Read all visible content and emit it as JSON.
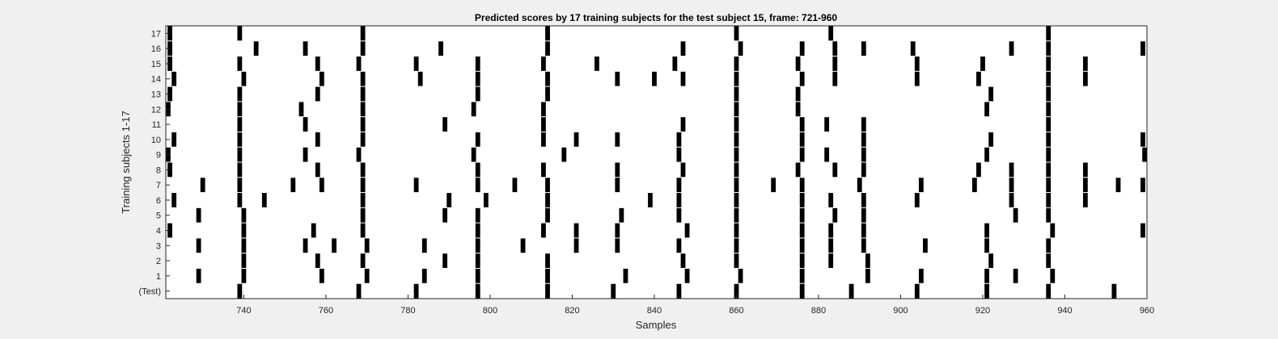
{
  "chart_data": {
    "type": "raster",
    "title": "Predicted scores by 17 training subjects for the test subject 15, frame: 721-960",
    "xlabel": "Samples",
    "ylabel": "Training subjects 1-17",
    "xlim": [
      721,
      960
    ],
    "xticks": [
      740,
      760,
      780,
      800,
      820,
      840,
      860,
      880,
      900,
      920,
      940,
      960
    ],
    "mark_color": "#000000",
    "background": "#ffffff",
    "rows": [
      {
        "label": "(Test)",
        "events": [
          739,
          768,
          782,
          797,
          814,
          830,
          846,
          860,
          876,
          888,
          904,
          921,
          936,
          952
        ]
      },
      {
        "label": "1",
        "events": [
          729,
          740,
          759,
          770,
          784,
          797,
          814,
          833,
          848,
          861,
          876,
          892,
          905,
          921,
          928,
          937
        ]
      },
      {
        "label": "2",
        "events": [
          740,
          758,
          769,
          789,
          797,
          814,
          847,
          860,
          876,
          883,
          892,
          922,
          936
        ]
      },
      {
        "label": "3",
        "events": [
          729,
          740,
          755,
          762,
          770,
          784,
          797,
          808,
          821,
          831,
          846,
          860,
          876,
          883,
          891,
          906,
          921,
          936
        ]
      },
      {
        "label": "4",
        "events": [
          722,
          740,
          757,
          769,
          797,
          813,
          821,
          831,
          848,
          860,
          876,
          883,
          891,
          921,
          937,
          959
        ]
      },
      {
        "label": "5",
        "events": [
          729,
          740,
          769,
          789,
          797,
          814,
          832,
          846,
          860,
          876,
          884,
          891,
          928,
          936
        ]
      },
      {
        "label": "6",
        "events": [
          723,
          739,
          745,
          769,
          790,
          799,
          814,
          839,
          846,
          860,
          876,
          883,
          891,
          904,
          927,
          936,
          945
        ]
      },
      {
        "label": "7",
        "events": [
          730,
          739,
          752,
          759,
          769,
          782,
          797,
          806,
          814,
          831,
          846,
          860,
          869,
          876,
          890,
          905,
          918,
          927,
          936,
          945,
          953,
          959
        ]
      },
      {
        "label": "8",
        "events": [
          722,
          739,
          758,
          769,
          797,
          813,
          831,
          847,
          860,
          875,
          884,
          891,
          919,
          927,
          936,
          945
        ]
      },
      {
        "label": "9",
        "events": [
          721,
          739,
          755,
          768,
          796,
          818,
          846,
          860,
          876,
          882,
          891,
          921,
          936,
          960
        ]
      },
      {
        "label": "10",
        "events": [
          723,
          739,
          758,
          769,
          797,
          813,
          821,
          831,
          846,
          860,
          876,
          891,
          922,
          936,
          959
        ]
      },
      {
        "label": "11",
        "events": [
          739,
          755,
          769,
          789,
          813,
          847,
          860,
          876,
          882,
          891,
          936
        ]
      },
      {
        "label": "12",
        "events": [
          721,
          739,
          754,
          769,
          796,
          813,
          860,
          875,
          921,
          936
        ]
      },
      {
        "label": "13",
        "events": [
          722,
          739,
          758,
          769,
          797,
          814,
          860,
          875,
          922,
          936
        ]
      },
      {
        "label": "14",
        "events": [
          723,
          740,
          759,
          769,
          783,
          797,
          814,
          831,
          840,
          847,
          860,
          876,
          884,
          904,
          919,
          936,
          945
        ]
      },
      {
        "label": "15",
        "events": [
          722,
          739,
          758,
          768,
          782,
          797,
          813,
          826,
          845,
          860,
          875,
          884,
          904,
          920,
          936,
          945
        ]
      },
      {
        "label": "16",
        "events": [
          722,
          743,
          755,
          769,
          788,
          814,
          847,
          861,
          876,
          884,
          891,
          903,
          927,
          936,
          959
        ]
      },
      {
        "label": "17",
        "events": [
          722,
          739,
          769,
          814,
          860,
          883,
          936
        ]
      }
    ]
  }
}
